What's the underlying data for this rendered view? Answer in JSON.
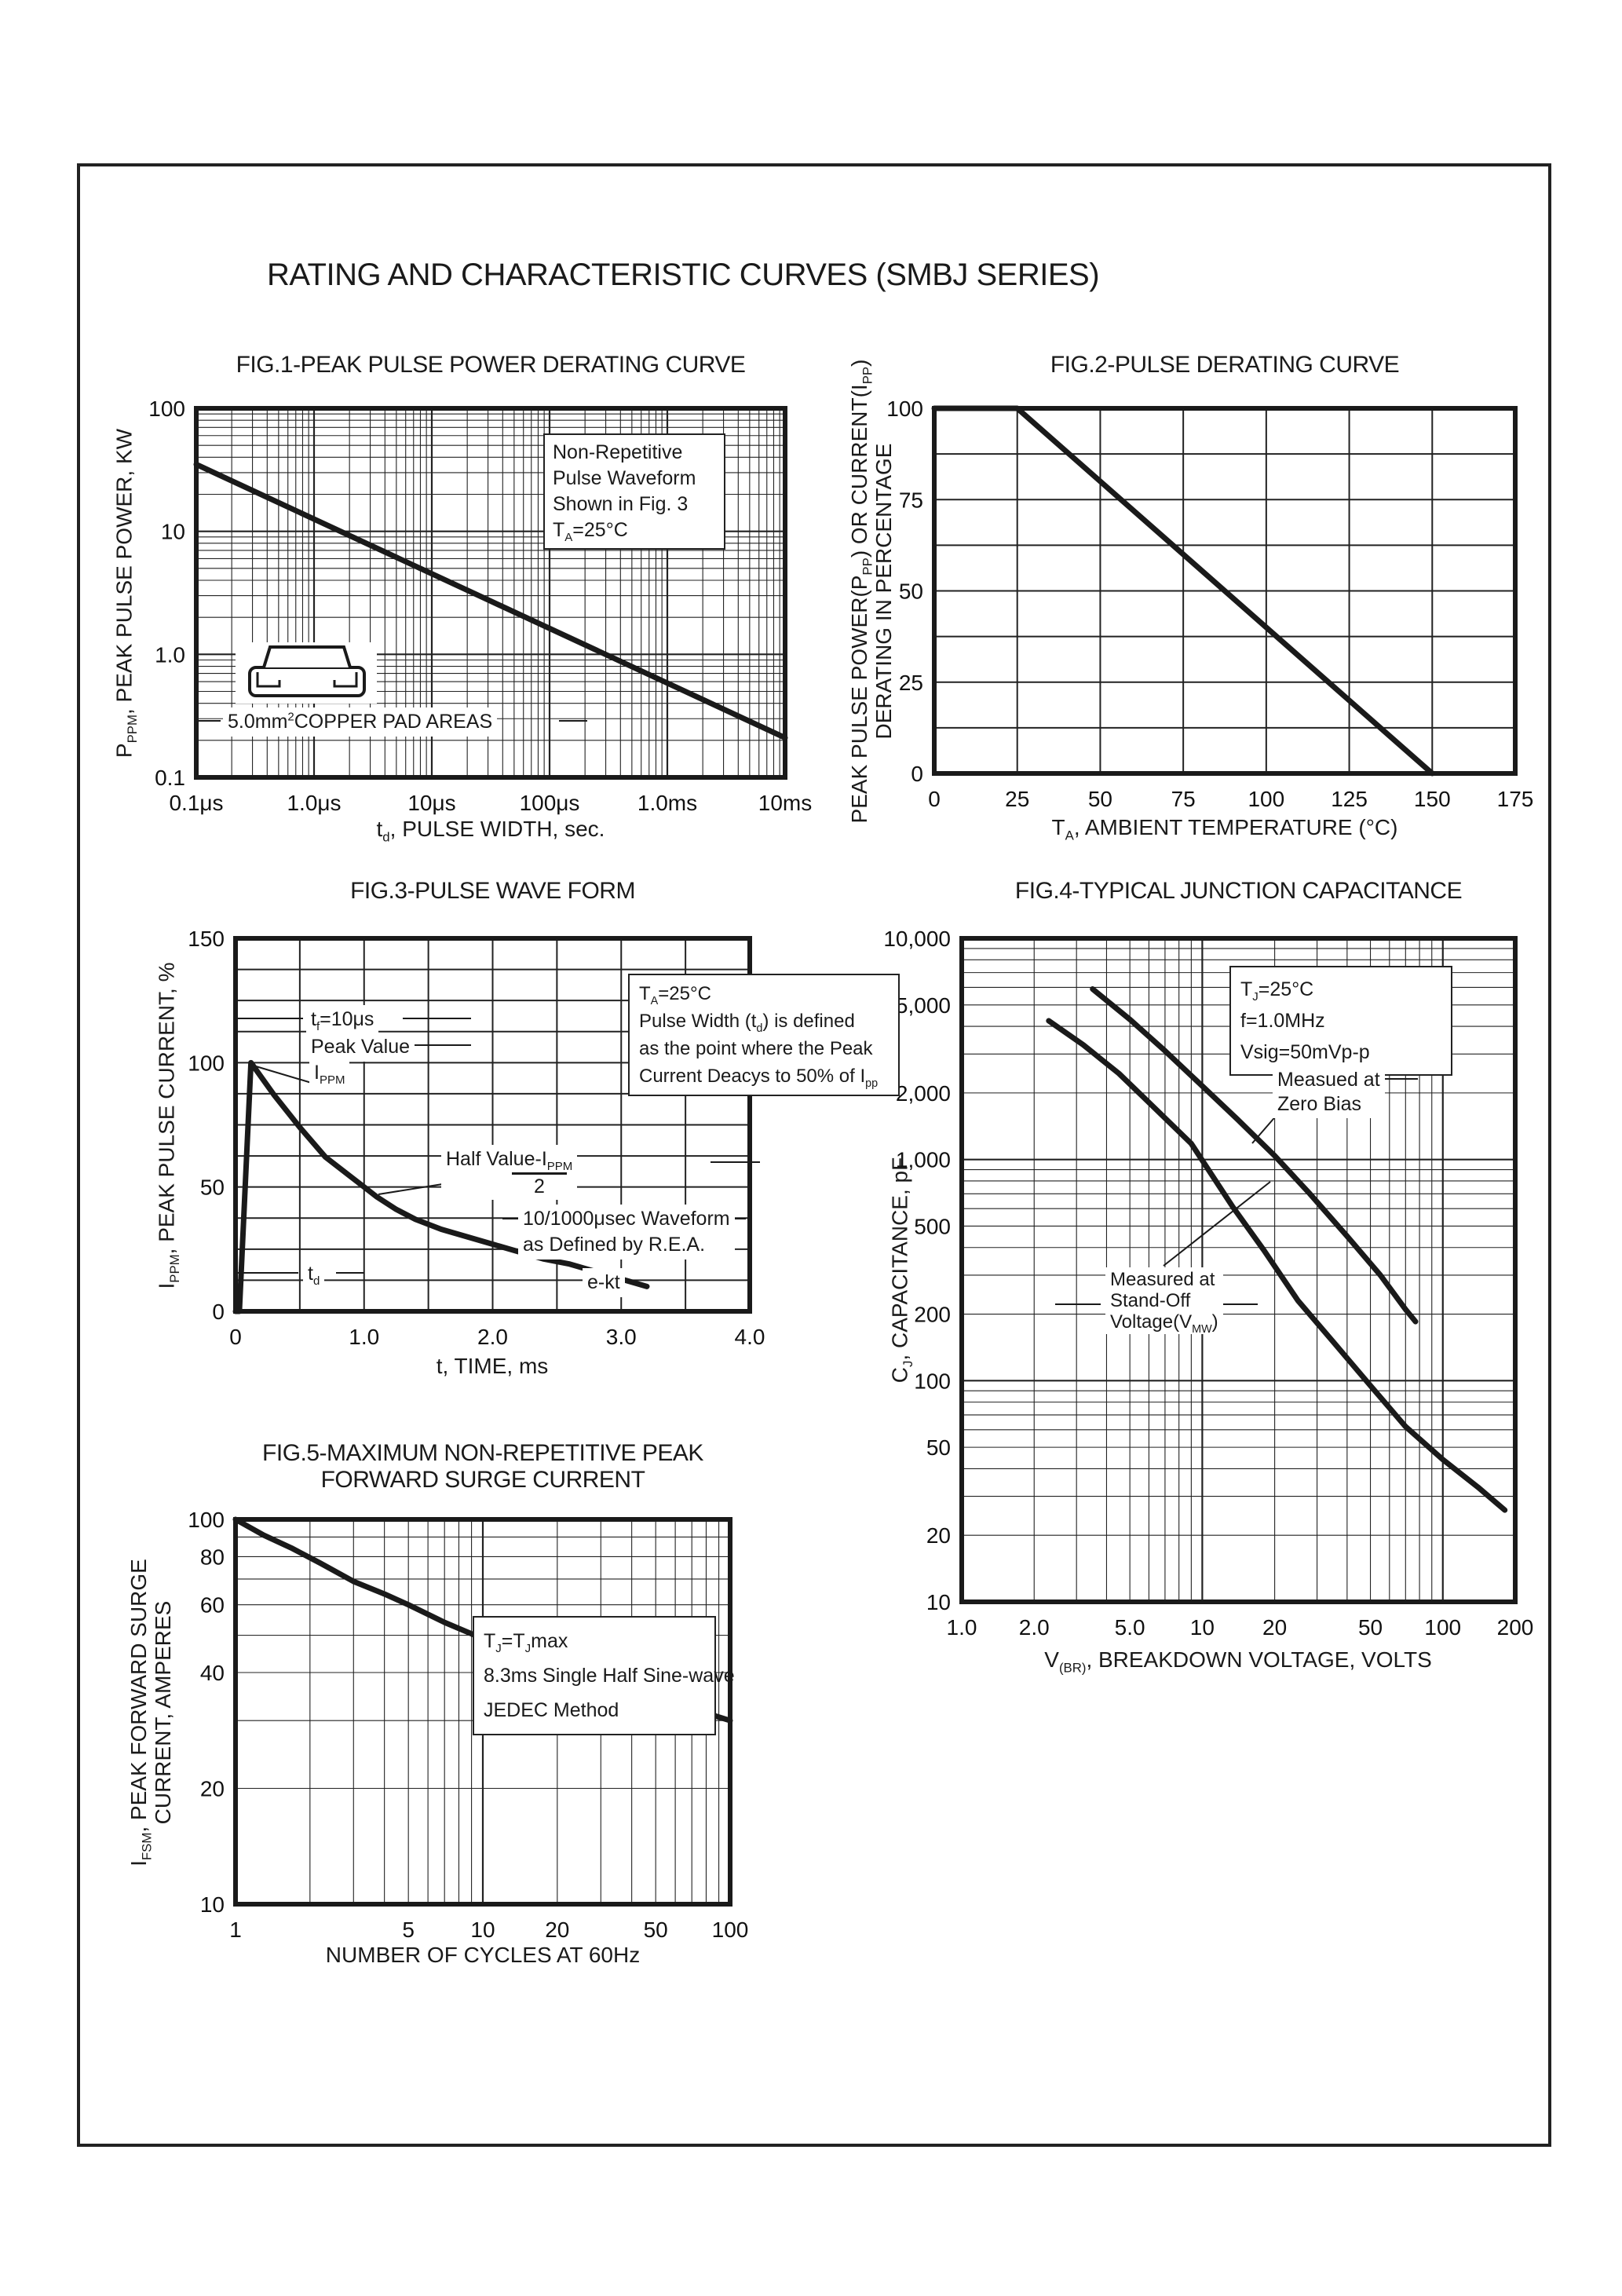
{
  "page": {
    "title": "RATING AND CHARACTERISTIC CURVES (SMBJ SERIES)"
  },
  "chart_data": [
    {
      "id": "fig1",
      "type": "line",
      "title": "FIG.1-PEAK PULSE POWER DERATING CURVE",
      "xlabel": [
        [
          {
            "t": "t"
          },
          {
            "t": "d",
            "sub": true
          },
          {
            "t": ", PULSE WIDTH, sec."
          }
        ]
      ],
      "ylabel": [
        [
          {
            "t": "P"
          },
          {
            "t": "PPM",
            "sub": true
          },
          {
            "t": ", PEAK PULSE POWER, KW"
          }
        ]
      ],
      "x_axis": {
        "scale": "log",
        "min": 1e-07,
        "max": 0.01,
        "ticks": [
          {
            "v": 1e-07,
            "l": "0.1μs"
          },
          {
            "v": 1e-06,
            "l": "1.0μs"
          },
          {
            "v": 1e-05,
            "l": "10μs"
          },
          {
            "v": 0.0001,
            "l": "100μs"
          },
          {
            "v": 0.001,
            "l": "1.0ms"
          },
          {
            "v": 0.01,
            "l": "10ms"
          }
        ]
      },
      "y_axis": {
        "scale": "log",
        "min": 0.1,
        "max": 100,
        "ticks": [
          {
            "v": 100,
            "l": "100"
          },
          {
            "v": 10,
            "l": "10"
          },
          {
            "v": 1,
            "l": "1.0"
          },
          {
            "v": 0.1,
            "l": "0.1"
          }
        ]
      },
      "series": [
        {
          "name": "peak-pulse-power",
          "points": [
            [
              1e-07,
              35
            ],
            [
              0.01,
              0.21
            ]
          ]
        }
      ],
      "annotations": {
        "waveform_note": [
          [
            {
              "t": "Non-Repetitive"
            }
          ],
          [
            {
              "t": "Pulse Waveform"
            }
          ],
          [
            {
              "t": "Shown in Fig. 3"
            }
          ],
          [
            {
              "t": "T"
            },
            {
              "t": "A",
              "sub": true
            },
            {
              "t": "=25°C"
            }
          ]
        ],
        "pad_note": [
          [
            {
              "t": "5.0mm"
            },
            {
              "t": "2",
              "sup": true
            },
            {
              "t": "COPPER PAD AREAS"
            }
          ]
        ]
      }
    },
    {
      "id": "fig2",
      "type": "line",
      "title": "FIG.2-PULSE DERATING CURVE",
      "xlabel": [
        [
          {
            "t": "T"
          },
          {
            "t": "A",
            "sub": true
          },
          {
            "t": ", AMBIENT TEMPERATURE (°C)"
          }
        ]
      ],
      "ylabel": [
        [
          {
            "t": "PEAK PULSE POWER(P"
          },
          {
            "t": "PP",
            "sub": true
          },
          {
            "t": ") OR CURRENT(I"
          },
          {
            "t": "PP",
            "sub": true
          },
          {
            "t": ")"
          }
        ],
        [
          {
            "t": "DERATING IN PERCENTAGE"
          }
        ]
      ],
      "x_axis": {
        "scale": "linear",
        "min": 0,
        "max": 175,
        "grid_step": 25,
        "ticks": [
          {
            "v": 0,
            "l": "0"
          },
          {
            "v": 25,
            "l": "25"
          },
          {
            "v": 50,
            "l": "50"
          },
          {
            "v": 75,
            "l": "75"
          },
          {
            "v": 100,
            "l": "100"
          },
          {
            "v": 125,
            "l": "125"
          },
          {
            "v": 150,
            "l": "150"
          },
          {
            "v": 175,
            "l": "175"
          }
        ]
      },
      "y_axis": {
        "scale": "linear",
        "min": 0,
        "max": 100,
        "grid_step": 12.5,
        "ticks": [
          {
            "v": 100,
            "l": "100"
          },
          {
            "v": 75,
            "l": "75"
          },
          {
            "v": 50,
            "l": "50"
          },
          {
            "v": 25,
            "l": "25"
          },
          {
            "v": 0,
            "l": "0"
          }
        ]
      },
      "series": [
        {
          "name": "pulse-derating",
          "points": [
            [
              0,
              100
            ],
            [
              25,
              100
            ],
            [
              150,
              0
            ]
          ]
        }
      ],
      "annotations": {}
    },
    {
      "id": "fig3",
      "type": "line",
      "title": "FIG.3-PULSE WAVE FORM",
      "xlabel": [
        [
          {
            "t": "t, TIME, ms"
          }
        ]
      ],
      "ylabel": [
        [
          {
            "t": "I"
          },
          {
            "t": "PPM",
            "sub": true
          },
          {
            "t": ", PEAK PULSE CURRENT, %"
          }
        ]
      ],
      "x_axis": {
        "scale": "linear",
        "min": 0,
        "max": 4,
        "grid_step": 0.5,
        "ticks": [
          {
            "v": 0,
            "l": "0"
          },
          {
            "v": 1,
            "l": "1.0"
          },
          {
            "v": 2,
            "l": "2.0"
          },
          {
            "v": 3,
            "l": "3.0"
          },
          {
            "v": 4,
            "l": "4.0"
          }
        ]
      },
      "y_axis": {
        "scale": "linear",
        "min": 0,
        "max": 150,
        "grid_step": 12.5,
        "ticks": [
          {
            "v": 150,
            "l": "150"
          },
          {
            "v": 100,
            "l": "100"
          },
          {
            "v": 50,
            "l": "50"
          },
          {
            "v": 0,
            "l": "0"
          }
        ]
      },
      "series": [
        {
          "name": "pulse-waveform",
          "points": [
            [
              0,
              0
            ],
            [
              0.03,
              0
            ],
            [
              0.12,
              100
            ],
            [
              0.3,
              87
            ],
            [
              0.5,
              74
            ],
            [
              0.7,
              62
            ],
            [
              0.9,
              54
            ],
            [
              1.0,
              50
            ],
            [
              1.1,
              46
            ],
            [
              1.25,
              41
            ],
            [
              1.4,
              37
            ],
            [
              1.6,
              33
            ],
            [
              1.8,
              30
            ],
            [
              2.0,
              27
            ],
            [
              2.2,
              24
            ],
            [
              2.4,
              21
            ],
            [
              2.6,
              19
            ],
            [
              2.8,
              16
            ],
            [
              3.0,
              13
            ],
            [
              3.2,
              10
            ]
          ]
        }
      ],
      "annotations": {
        "tf_note": [
          [
            {
              "t": "t"
            },
            {
              "t": "f",
              "sub": true
            },
            {
              "t": "=10μs"
            }
          ]
        ],
        "peak_value": [
          [
            {
              "t": "Peak Value"
            }
          ]
        ],
        "ippm": [
          [
            {
              "t": "I"
            },
            {
              "t": "PPM",
              "sub": true
            }
          ]
        ],
        "ta_note": [
          [
            {
              "t": "T"
            },
            {
              "t": "A",
              "sub": true
            },
            {
              "t": "=25°C"
            }
          ],
          [
            {
              "t": "Pulse Width (t"
            },
            {
              "t": "d",
              "sub": true
            },
            {
              "t": ") is defined"
            }
          ],
          [
            {
              "t": "as the point where the Peak"
            }
          ],
          [
            {
              "t": "Current Deacys to 50% of I"
            },
            {
              "t": "pp",
              "sub": true
            }
          ]
        ],
        "half_value": {
          "numerator": [
            [
              {
                "t": "Half Value-I"
              },
              {
                "t": "PPM",
                "sub": true
              }
            ]
          ],
          "denominator": "2"
        },
        "rea_note": [
          [
            {
              "t": "10/1000μsec Waveform"
            }
          ],
          [
            {
              "t": "as Defined by R.E.A."
            }
          ]
        ],
        "td_label": [
          [
            {
              "t": "t"
            },
            {
              "t": "d",
              "sub": true
            }
          ]
        ],
        "ekt_label": [
          [
            {
              "t": "e-kt"
            }
          ]
        ]
      }
    },
    {
      "id": "fig4",
      "type": "line",
      "title": "FIG.4-TYPICAL JUNCTION CAPACITANCE",
      "xlabel": [
        [
          {
            "t": "V"
          },
          {
            "t": "(BR)",
            "sub": true
          },
          {
            "t": ", BREAKDOWN VOLTAGE, VOLTS"
          }
        ]
      ],
      "ylabel": [
        [
          {
            "t": "C"
          },
          {
            "t": "J",
            "sub": true
          },
          {
            "t": ", CAPACITANCE, pF"
          }
        ]
      ],
      "x_axis": {
        "scale": "log",
        "min": 1,
        "max": 200,
        "ticks": [
          {
            "v": 1,
            "l": "1.0"
          },
          {
            "v": 2,
            "l": "2.0"
          },
          {
            "v": 5,
            "l": "5.0"
          },
          {
            "v": 10,
            "l": "10"
          },
          {
            "v": 20,
            "l": "20"
          },
          {
            "v": 50,
            "l": "50"
          },
          {
            "v": 100,
            "l": "100"
          },
          {
            "v": 200,
            "l": "200"
          }
        ]
      },
      "y_axis": {
        "scale": "log",
        "min": 10,
        "max": 10000,
        "ticks": [
          {
            "v": 10000,
            "l": "10,000"
          },
          {
            "v": 5000,
            "l": "5,000"
          },
          {
            "v": 2000,
            "l": "2,000"
          },
          {
            "v": 1000,
            "l": "1,000"
          },
          {
            "v": 500,
            "l": "500"
          },
          {
            "v": 200,
            "l": "200"
          },
          {
            "v": 100,
            "l": "100"
          },
          {
            "v": 50,
            "l": "50"
          },
          {
            "v": 20,
            "l": "20"
          },
          {
            "v": 10,
            "l": "10"
          }
        ]
      },
      "series": [
        {
          "name": "measured-at-zero-bias",
          "points": [
            [
              3.5,
              5900
            ],
            [
              5,
              4300
            ],
            [
              7,
              3100
            ],
            [
              10,
              2150
            ],
            [
              14,
              1520
            ],
            [
              20,
              1040
            ],
            [
              28,
              700
            ],
            [
              40,
              450
            ],
            [
              55,
              300
            ],
            [
              70,
              210
            ],
            [
              77,
              185
            ]
          ]
        },
        {
          "name": "measured-at-stand-off-voltage",
          "points": [
            [
              2.3,
              4240
            ],
            [
              3.2,
              3300
            ],
            [
              4.5,
              2450
            ],
            [
              6.2,
              1750
            ],
            [
              9,
              1180
            ],
            [
              13.4,
              610
            ],
            [
              18,
              390
            ],
            [
              25,
              230
            ],
            [
              35,
              150
            ],
            [
              50,
              95
            ],
            [
              70,
              62
            ],
            [
              100,
              44
            ],
            [
              140,
              33
            ],
            [
              181,
              26
            ]
          ]
        }
      ],
      "annotations": {
        "cond_note": [
          [
            {
              "t": "T"
            },
            {
              "t": "J",
              "sub": true
            },
            {
              "t": "=25°C"
            }
          ],
          [
            {
              "t": "f=1.0MHz"
            }
          ],
          [
            {
              "t": "Vsig=50mVp-p"
            }
          ]
        ],
        "zero_bias": [
          [
            {
              "t": "Measued at"
            }
          ],
          [
            {
              "t": "Zero Bias"
            }
          ]
        ],
        "stand_off": [
          [
            {
              "t": "Measured at"
            }
          ],
          [
            {
              "t": "Stand-Off"
            }
          ],
          [
            {
              "t": "Voltage(V"
            },
            {
              "t": "MW",
              "sub": true
            },
            {
              "t": ")"
            }
          ]
        ]
      }
    },
    {
      "id": "fig5",
      "type": "line",
      "title": "FIG.5-MAXIMUM NON-REPETITIVE PEAK\nFORWARD SURGE CURRENT",
      "xlabel": [
        [
          {
            "t": "NUMBER OF CYCLES AT 60Hz"
          }
        ]
      ],
      "ylabel": [
        [
          {
            "t": "I"
          },
          {
            "t": "FSM",
            "sub": true
          },
          {
            "t": ", PEAK FORWARD SURGE"
          }
        ],
        [
          {
            "t": "CURRENT, AMPERES"
          }
        ]
      ],
      "x_axis": {
        "scale": "log",
        "min": 1,
        "max": 100,
        "ticks": [
          {
            "v": 1,
            "l": "1"
          },
          {
            "v": 5,
            "l": "5"
          },
          {
            "v": 10,
            "l": "10"
          },
          {
            "v": 20,
            "l": "20"
          },
          {
            "v": 50,
            "l": "50"
          },
          {
            "v": 100,
            "l": "100"
          }
        ]
      },
      "y_axis": {
        "scale": "log",
        "min": 10,
        "max": 100,
        "ticks": [
          {
            "v": 100,
            "l": "100"
          },
          {
            "v": 80,
            "l": "80"
          },
          {
            "v": 60,
            "l": "60"
          },
          {
            "v": 40,
            "l": "40"
          },
          {
            "v": 20,
            "l": "20"
          },
          {
            "v": 10,
            "l": "10"
          }
        ]
      },
      "series": [
        {
          "name": "forward-surge-current",
          "points": [
            [
              1,
              100
            ],
            [
              1.3,
              91
            ],
            [
              1.7,
              84
            ],
            [
              2.2,
              77
            ],
            [
              3,
              69
            ],
            [
              4,
              64
            ],
            [
              5,
              60
            ],
            [
              7,
              54
            ],
            [
              10,
              49
            ],
            [
              14,
              45
            ],
            [
              20,
              42
            ],
            [
              28,
              39
            ],
            [
              40,
              37
            ],
            [
              55,
              35
            ],
            [
              70,
              33
            ],
            [
              85,
              31
            ],
            [
              100,
              30
            ]
          ]
        }
      ],
      "annotations": {
        "cond_note": [
          [
            {
              "t": "T"
            },
            {
              "t": "J",
              "sub": true
            },
            {
              "t": "=T"
            },
            {
              "t": "J",
              "sub": true
            },
            {
              "t": "max"
            }
          ],
          [
            {
              "t": "8.3ms Single Half Sine-wave"
            }
          ],
          [
            {
              "t": "JEDEC Method"
            }
          ]
        ]
      }
    }
  ]
}
